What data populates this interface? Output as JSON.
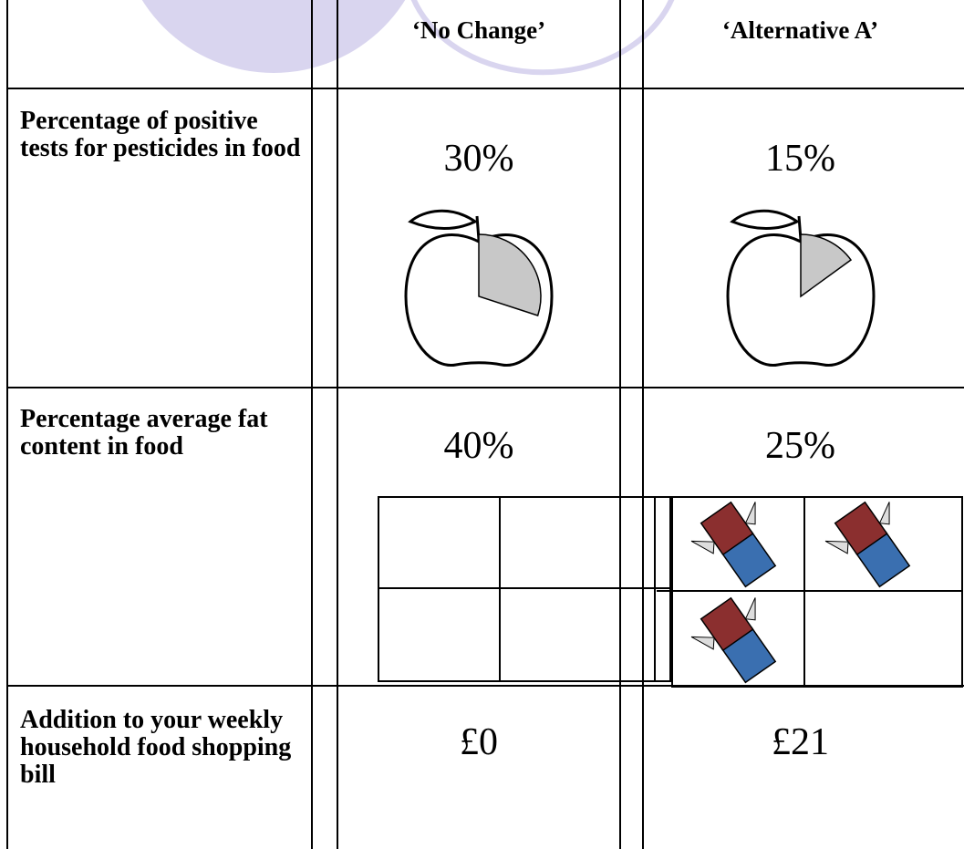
{
  "table": {
    "header": [
      "‘No Change’",
      "‘Alternative A’"
    ],
    "rows": [
      {
        "label": "Percentage of positive tests for pesticides in food",
        "cells": [
          {
            "value": 30,
            "label": "30%"
          },
          {
            "value": 15,
            "label": "15%"
          }
        ]
      },
      {
        "label": "Percentage average fat content in food",
        "cells": [
          {
            "value": 40,
            "label": "40%"
          },
          {
            "value": 25,
            "label": "25%"
          }
        ]
      },
      {
        "label": "Addition to your weekly household food shopping bill",
        "cells": [
          "£0",
          "£21"
        ]
      }
    ]
  }
}
